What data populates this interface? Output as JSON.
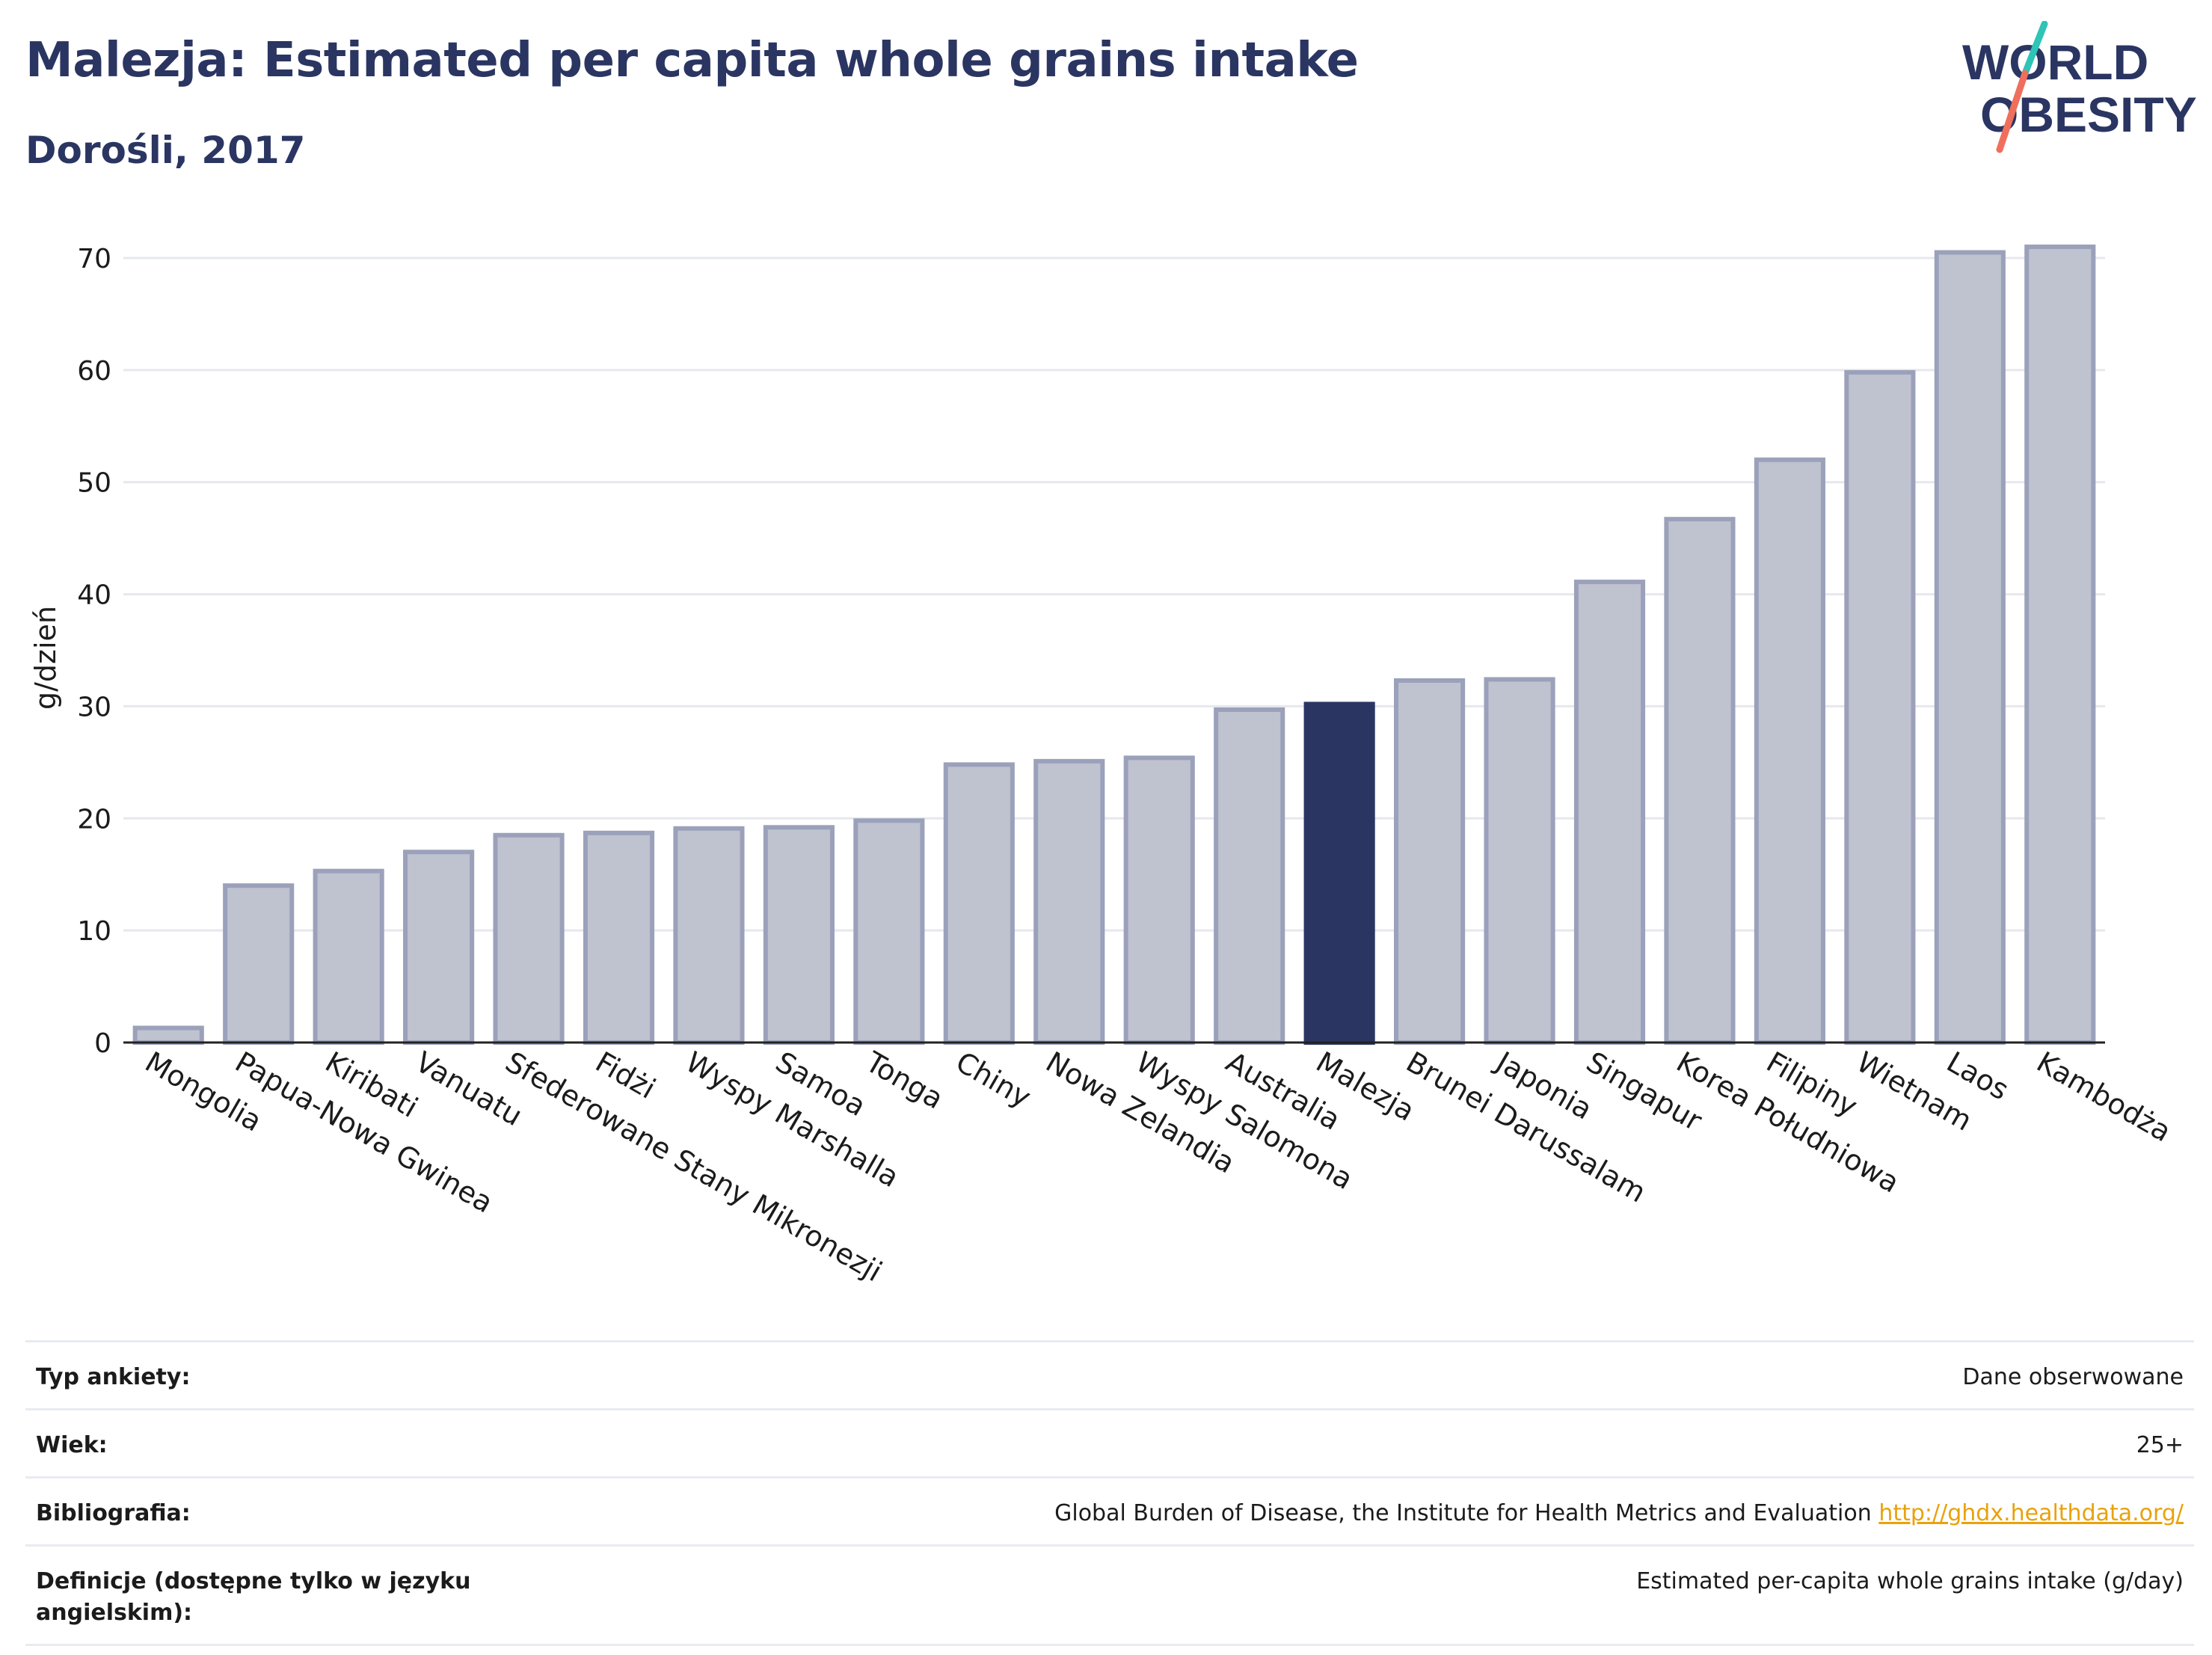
{
  "header": {
    "title": "Malezja: Estimated per capita whole grains intake",
    "subtitle": "Dorośli, 2017"
  },
  "logo": {
    "line1": "WORLD",
    "line2": "OBESITY",
    "accent_teal": "#2ec4b6",
    "accent_coral": "#ef6f5c"
  },
  "colors": {
    "bar_fill": "#bfc2cf",
    "bar_stroke": "#9ba1ba",
    "highlight": "#2a3562",
    "grid": "#e6e8ee",
    "text": "#1b1b1b"
  },
  "chart_data": {
    "type": "bar",
    "title": "Malezja: Estimated per capita whole grains intake",
    "subtitle": "Dorośli, 2017",
    "xlabel": "",
    "ylabel": "g/dzień",
    "ylim": [
      0,
      70
    ],
    "yticks": [
      0,
      10,
      20,
      30,
      40,
      50,
      60,
      70
    ],
    "grid": true,
    "highlight_category": "Malezja",
    "categories": [
      "Mongolia",
      "Papua-Nowa Gwinea",
      "Kiribati",
      "Vanuatu",
      "Sfederowane Stany Mikronezji",
      "Fidżi",
      "Wyspy Marshalla",
      "Samoa",
      "Tonga",
      "Chiny",
      "Nowa Zelandia",
      "Wyspy Salomona",
      "Australia",
      "Malezja",
      "Brunei Darussalam",
      "Japonia",
      "Singapur",
      "Korea Południowa",
      "Filipiny",
      "Wietnam",
      "Laos",
      "Kambodża"
    ],
    "values": [
      1.3,
      14.0,
      15.3,
      17.0,
      18.5,
      18.7,
      19.1,
      19.2,
      19.8,
      24.8,
      25.1,
      25.4,
      29.7,
      30.2,
      32.3,
      32.4,
      41.1,
      46.7,
      52.0,
      59.8,
      70.5,
      71.0
    ]
  },
  "info": {
    "rows": [
      {
        "label": "Typ ankiety:",
        "value": "Dane obserwowane"
      },
      {
        "label": "Wiek:",
        "value": "25+"
      },
      {
        "label": "Bibliografia:",
        "value": "Global Burden of Disease, the Institute for Health Metrics and Evaluation",
        "link": "http://ghdx.healthdata.org/"
      },
      {
        "label": "Definicje (dostępne tylko w języku angielskim):",
        "value": "Estimated per-capita whole grains intake (g/day)"
      }
    ]
  }
}
